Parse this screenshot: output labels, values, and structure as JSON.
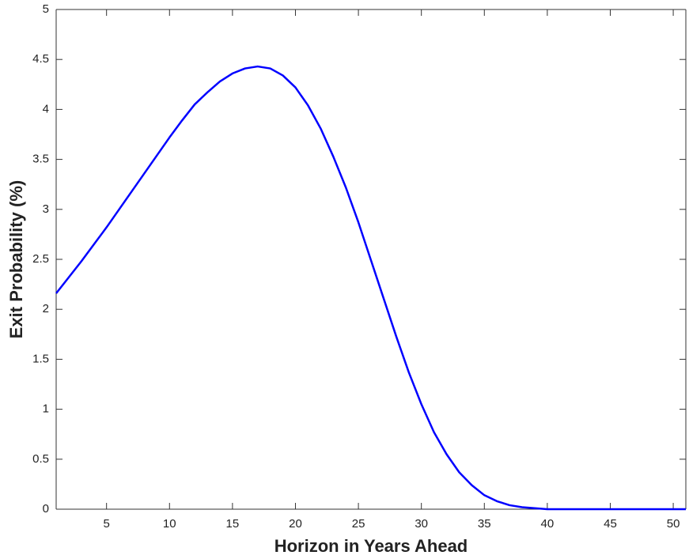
{
  "chart_data": {
    "type": "line",
    "xlabel": "Horizon in Years Ahead",
    "ylabel": "Exit Probability (%)",
    "x": [
      1,
      2,
      3,
      4,
      5,
      6,
      7,
      8,
      9,
      10,
      11,
      12,
      13,
      14,
      15,
      16,
      17,
      18,
      19,
      20,
      21,
      22,
      23,
      24,
      25,
      26,
      27,
      28,
      29,
      30,
      31,
      32,
      33,
      34,
      35,
      36,
      37,
      38,
      39,
      40,
      41,
      42,
      43,
      44,
      45,
      46,
      47,
      48,
      49,
      50,
      51
    ],
    "series": [
      {
        "color": "#0000ff",
        "values": [
          2.16,
          2.32,
          2.48,
          2.65,
          2.82,
          3.0,
          3.18,
          3.36,
          3.54,
          3.72,
          3.89,
          4.05,
          4.17,
          4.28,
          4.36,
          4.41,
          4.43,
          4.41,
          4.34,
          4.22,
          4.04,
          3.81,
          3.53,
          3.22,
          2.87,
          2.49,
          2.11,
          1.73,
          1.37,
          1.05,
          0.77,
          0.55,
          0.37,
          0.24,
          0.14,
          0.08,
          0.04,
          0.02,
          0.01,
          0,
          0,
          0,
          0,
          0,
          0,
          0,
          0,
          0,
          0,
          0,
          0
        ]
      }
    ],
    "xlim": [
      1,
      51
    ],
    "ylim": [
      0,
      5
    ],
    "xticks": [
      5,
      10,
      15,
      20,
      25,
      30,
      35,
      40,
      45,
      50
    ],
    "yticks": [
      0,
      0.5,
      1,
      1.5,
      2,
      2.5,
      3,
      3.5,
      4,
      4.5,
      5
    ]
  }
}
